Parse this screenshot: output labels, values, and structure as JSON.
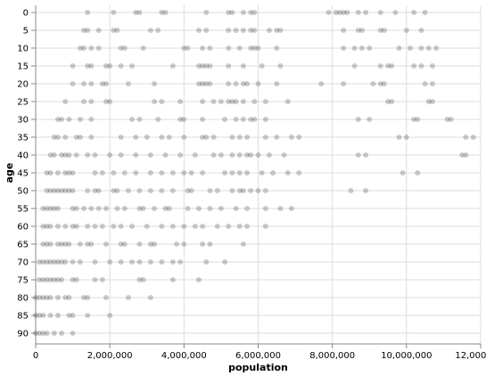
{
  "chart_data": {
    "type": "scatter",
    "title": "",
    "xlabel": "population",
    "ylabel": "age",
    "xlim": [
      0,
      12000000
    ],
    "ylim": [
      0,
      90
    ],
    "x_ticks": [
      0,
      2000000,
      4000000,
      6000000,
      8000000,
      10000000,
      12000000
    ],
    "x_tick_labels": [
      "0",
      "2,000,000",
      "4,000,000",
      "6,000,000",
      "8,000,000",
      "10,000,000",
      "12,000,000"
    ],
    "y_ticks": [
      0,
      5,
      10,
      15,
      20,
      25,
      30,
      35,
      40,
      45,
      50,
      55,
      60,
      65,
      70,
      75,
      80,
      85,
      90
    ],
    "y_tick_labels": [
      "0",
      "5",
      "10",
      "15",
      "20",
      "25",
      "30",
      "35",
      "40",
      "45",
      "50",
      "55",
      "60",
      "65",
      "70",
      "75",
      "80",
      "85",
      "90"
    ],
    "grid": true,
    "point_color": "#000000",
    "point_opacity": 0.2,
    "series": [
      {
        "values": [
          {
            "age": 0,
            "population": [
              1400000,
              2100000,
              2700000,
              2800000,
              3400000,
              3500000,
              4600000,
              5200000,
              5300000,
              5600000,
              5800000,
              5900000,
              7900000,
              8100000,
              8200000,
              8300000,
              8400000,
              8700000,
              8900000,
              9300000,
              9700000,
              10200000,
              10500000
            ]
          },
          {
            "age": 5,
            "population": [
              1300000,
              1400000,
              1700000,
              2100000,
              2200000,
              3100000,
              3300000,
              4400000,
              4600000,
              5200000,
              5400000,
              5600000,
              5800000,
              5900000,
              6300000,
              6500000,
              6600000,
              8300000,
              8700000,
              8800000,
              9300000,
              9400000,
              10000000,
              10400000
            ]
          },
          {
            "age": 10,
            "population": [
              1200000,
              1300000,
              1500000,
              1700000,
              2300000,
              2400000,
              2900000,
              4000000,
              4100000,
              4500000,
              4700000,
              5200000,
              5500000,
              5800000,
              5900000,
              6000000,
              6500000,
              8300000,
              8600000,
              8800000,
              9000000,
              9800000,
              10100000,
              10400000,
              10600000,
              10800000
            ]
          },
          {
            "age": 15,
            "population": [
              1000000,
              1400000,
              1500000,
              1900000,
              2000000,
              2300000,
              2600000,
              3700000,
              4400000,
              4500000,
              4600000,
              4700000,
              5200000,
              5600000,
              6100000,
              6600000,
              8600000,
              9300000,
              9500000,
              9600000,
              10200000,
              10400000,
              10700000
            ]
          },
          {
            "age": 20,
            "population": [
              1000000,
              1300000,
              1500000,
              1800000,
              1900000,
              2500000,
              3200000,
              4400000,
              4500000,
              4600000,
              4700000,
              5200000,
              5400000,
              5600000,
              5700000,
              6000000,
              6500000,
              7700000,
              8300000,
              9100000,
              9300000,
              9400000,
              10500000,
              10700000
            ]
          },
          {
            "age": 25,
            "population": [
              800000,
              1300000,
              1500000,
              1900000,
              2000000,
              3200000,
              3400000,
              3900000,
              4500000,
              4800000,
              5000000,
              5200000,
              5300000,
              5400000,
              5600000,
              5900000,
              6200000,
              6800000,
              9500000,
              9600000,
              10600000,
              10700000
            ]
          },
          {
            "age": 30,
            "population": [
              600000,
              700000,
              900000,
              1200000,
              1500000,
              2600000,
              2800000,
              3300000,
              3900000,
              4000000,
              4500000,
              5100000,
              5400000,
              5600000,
              5800000,
              5900000,
              6200000,
              8700000,
              9000000,
              10200000,
              10300000,
              11100000,
              11200000
            ]
          },
          {
            "age": 35,
            "population": [
              500000,
              600000,
              800000,
              1100000,
              1200000,
              1500000,
              2300000,
              2700000,
              3000000,
              3400000,
              3600000,
              4000000,
              4500000,
              4600000,
              4800000,
              5300000,
              5500000,
              5700000,
              6200000,
              6500000,
              6900000,
              7100000,
              9800000,
              10000000,
              11600000,
              11800000
            ]
          },
          {
            "age": 40,
            "population": [
              400000,
              500000,
              700000,
              800000,
              900000,
              1100000,
              1400000,
              1600000,
              2000000,
              2300000,
              2700000,
              3100000,
              3500000,
              3900000,
              4300000,
              4800000,
              5000000,
              5300000,
              5500000,
              5700000,
              5800000,
              6000000,
              6300000,
              6700000,
              8700000,
              8900000,
              11500000,
              11600000
            ]
          },
          {
            "age": 45,
            "population": [
              300000,
              400000,
              600000,
              800000,
              900000,
              1000000,
              1600000,
              1800000,
              2100000,
              2400000,
              2700000,
              3100000,
              3400000,
              3700000,
              4000000,
              4200000,
              4500000,
              5100000,
              5300000,
              5500000,
              5700000,
              6100000,
              6400000,
              6800000,
              7100000,
              9900000,
              10300000
            ]
          },
          {
            "age": 50,
            "population": [
              300000,
              400000,
              500000,
              600000,
              700000,
              800000,
              900000,
              1000000,
              1400000,
              1600000,
              1700000,
              2100000,
              2200000,
              2500000,
              2800000,
              3100000,
              3400000,
              3700000,
              4100000,
              4200000,
              4700000,
              4900000,
              5300000,
              5500000,
              5600000,
              5800000,
              6000000,
              6200000,
              8500000,
              8900000
            ]
          },
          {
            "age": 55,
            "population": [
              200000,
              300000,
              400000,
              500000,
              600000,
              1000000,
              1100000,
              1300000,
              1500000,
              1700000,
              1900000,
              2200000,
              2400000,
              2800000,
              2900000,
              3200000,
              3500000,
              3600000,
              4100000,
              4400000,
              4700000,
              5000000,
              5400000,
              5700000,
              6200000,
              6600000,
              6900000
            ]
          },
          {
            "age": 60,
            "population": [
              200000,
              300000,
              400000,
              600000,
              800000,
              1000000,
              1100000,
              1400000,
              1600000,
              1800000,
              2100000,
              2300000,
              2600000,
              3000000,
              3400000,
              3700000,
              4000000,
              4300000,
              4500000,
              4900000,
              5200000,
              5500000,
              5700000,
              6200000
            ]
          },
          {
            "age": 65,
            "population": [
              200000,
              300000,
              400000,
              600000,
              700000,
              800000,
              900000,
              1200000,
              1400000,
              1500000,
              1900000,
              2300000,
              2400000,
              2800000,
              3100000,
              3200000,
              3800000,
              4000000,
              4500000,
              4700000,
              5600000
            ]
          },
          {
            "age": 70,
            "population": [
              100000,
              200000,
              300000,
              400000,
              500000,
              600000,
              700000,
              800000,
              1000000,
              1200000,
              1600000,
              2000000,
              2300000,
              2600000,
              2800000,
              3100000,
              3400000,
              3700000,
              3900000,
              4600000,
              5100000
            ]
          },
          {
            "age": 75,
            "population": [
              100000,
              200000,
              300000,
              400000,
              500000,
              600000,
              700000,
              1000000,
              1100000,
              1600000,
              1800000,
              2800000,
              2900000,
              3700000,
              4400000
            ]
          },
          {
            "age": 80,
            "population": [
              0,
              100000,
              200000,
              300000,
              400000,
              600000,
              800000,
              900000,
              1300000,
              1400000,
              1900000,
              2500000,
              3100000
            ]
          },
          {
            "age": 85,
            "population": [
              0,
              100000,
              200000,
              400000,
              600000,
              900000,
              1000000,
              1400000,
              2000000
            ]
          },
          {
            "age": 90,
            "population": [
              0,
              100000,
              200000,
              300000,
              500000,
              700000,
              1000000
            ]
          }
        ]
      }
    ]
  }
}
